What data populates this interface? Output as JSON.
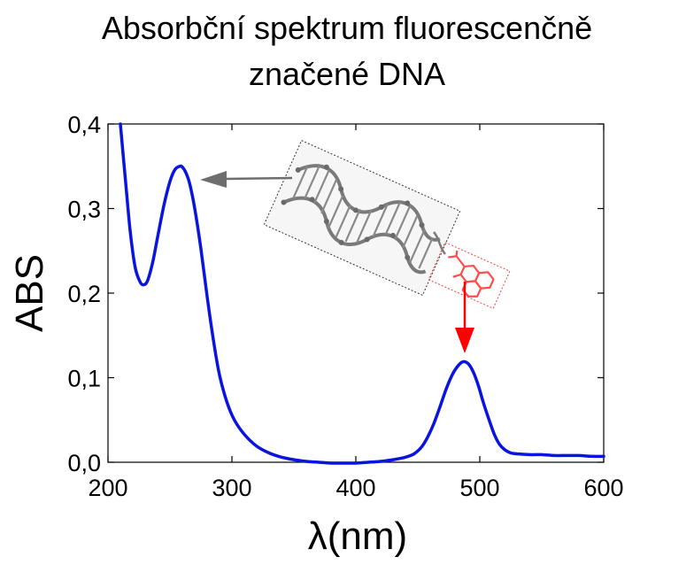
{
  "chart_data": {
    "type": "line",
    "title_lines": [
      "Absorbční spektrum fluorescenčně",
      "značené DNA"
    ],
    "xlabel": "λ(nm)",
    "ylabel": "ABS",
    "xlim": [
      200,
      600
    ],
    "ylim": [
      0.0,
      0.4
    ],
    "x_ticks": [
      200,
      300,
      400,
      500,
      600
    ],
    "y_ticks": [
      0.0,
      0.1,
      0.2,
      0.3,
      0.4
    ],
    "x_tick_labels": [
      "200",
      "300",
      "400",
      "500",
      "600"
    ],
    "y_tick_labels": [
      "0,0",
      "0,1",
      "0,2",
      "0,3",
      "0,4"
    ],
    "grid": false,
    "series": [
      {
        "color": "#0a14e0",
        "x": [
          210,
          214,
          218,
          222,
          226,
          229,
          232,
          236,
          240,
          245,
          250,
          254,
          258,
          260,
          263,
          266,
          270,
          275,
          280,
          285,
          290,
          296,
          302,
          310,
          320,
          330,
          340,
          350,
          360,
          370,
          380,
          390,
          400,
          410,
          420,
          430,
          440,
          447,
          453,
          458,
          463,
          468,
          473,
          478,
          483,
          487,
          491,
          495,
          499,
          503,
          508,
          512,
          516,
          520,
          525,
          530,
          540,
          550,
          560,
          570,
          580,
          590,
          600
        ],
        "y": [
          0.4,
          0.335,
          0.272,
          0.23,
          0.213,
          0.21,
          0.215,
          0.236,
          0.266,
          0.303,
          0.332,
          0.346,
          0.35,
          0.349,
          0.342,
          0.329,
          0.3,
          0.252,
          0.196,
          0.145,
          0.103,
          0.071,
          0.05,
          0.033,
          0.019,
          0.011,
          0.006,
          0.003,
          0.001,
          0.0,
          -0.001,
          -0.001,
          -0.001,
          0.0,
          0.001,
          0.003,
          0.006,
          0.01,
          0.018,
          0.03,
          0.046,
          0.066,
          0.087,
          0.104,
          0.115,
          0.119,
          0.116,
          0.106,
          0.09,
          0.07,
          0.048,
          0.032,
          0.021,
          0.015,
          0.011,
          0.01,
          0.009,
          0.009,
          0.008,
          0.008,
          0.008,
          0.007,
          0.007
        ]
      }
    ],
    "annotations": [
      {
        "type": "arrow",
        "color": "#6e6e6e",
        "points_to": {
          "x": 262,
          "y": 0.338
        }
      },
      {
        "type": "arrow",
        "color": "#ff0000",
        "points_to": {
          "x": 487,
          "y": 0.125
        }
      }
    ]
  }
}
